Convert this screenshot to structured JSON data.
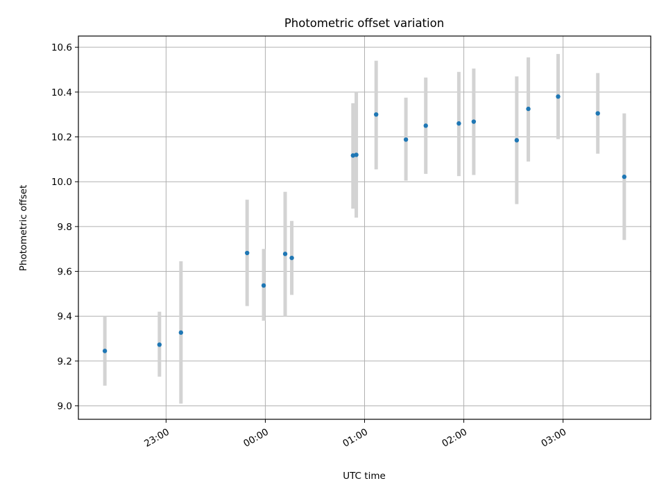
{
  "chart_data": {
    "type": "scatter",
    "title": "Photometric offset variation",
    "xlabel": "UTC time",
    "ylabel": "Photometric offset",
    "x_unit": "UTC time of night (HH:MM)",
    "xlim": [
      "22:07",
      "03:53"
    ],
    "ylim": [
      8.94,
      10.65
    ],
    "grid": true,
    "xticks": [
      "23:00",
      "00:00",
      "01:00",
      "02:00",
      "03:00"
    ],
    "yticks": [
      9.0,
      9.2,
      9.4,
      9.6,
      9.8,
      10.0,
      10.2,
      10.4,
      10.6
    ],
    "marker_color": "#1f77b4",
    "errorbar_color": "#d3d3d3",
    "points": [
      {
        "t": "22:23",
        "y": 9.245,
        "lo": 9.09,
        "hi": 9.4
      },
      {
        "t": "22:56",
        "y": 9.273,
        "lo": 9.13,
        "hi": 9.42
      },
      {
        "t": "23:09",
        "y": 9.327,
        "lo": 9.01,
        "hi": 9.645
      },
      {
        "t": "23:49",
        "y": 9.682,
        "lo": 9.445,
        "hi": 9.92
      },
      {
        "t": "23:59",
        "y": 9.537,
        "lo": 9.38,
        "hi": 9.7
      },
      {
        "t": "00:12",
        "y": 9.678,
        "lo": 9.4,
        "hi": 9.955
      },
      {
        "t": "00:16",
        "y": 9.66,
        "lo": 9.495,
        "hi": 9.825
      },
      {
        "t": "00:53",
        "y": 10.117,
        "lo": 9.88,
        "hi": 10.35
      },
      {
        "t": "00:55",
        "y": 10.12,
        "lo": 9.84,
        "hi": 10.4
      },
      {
        "t": "01:07",
        "y": 10.3,
        "lo": 10.055,
        "hi": 10.54
      },
      {
        "t": "01:25",
        "y": 10.188,
        "lo": 10.005,
        "hi": 10.375
      },
      {
        "t": "01:37",
        "y": 10.25,
        "lo": 10.035,
        "hi": 10.465
      },
      {
        "t": "01:57",
        "y": 10.26,
        "lo": 10.025,
        "hi": 10.49
      },
      {
        "t": "02:06",
        "y": 10.268,
        "lo": 10.03,
        "hi": 10.505
      },
      {
        "t": "02:32",
        "y": 10.185,
        "lo": 9.9,
        "hi": 10.47
      },
      {
        "t": "02:39",
        "y": 10.325,
        "lo": 10.09,
        "hi": 10.555
      },
      {
        "t": "02:57",
        "y": 10.38,
        "lo": 10.19,
        "hi": 10.57
      },
      {
        "t": "03:21",
        "y": 10.305,
        "lo": 10.125,
        "hi": 10.485
      },
      {
        "t": "03:37",
        "y": 10.022,
        "lo": 9.74,
        "hi": 10.305
      }
    ]
  }
}
